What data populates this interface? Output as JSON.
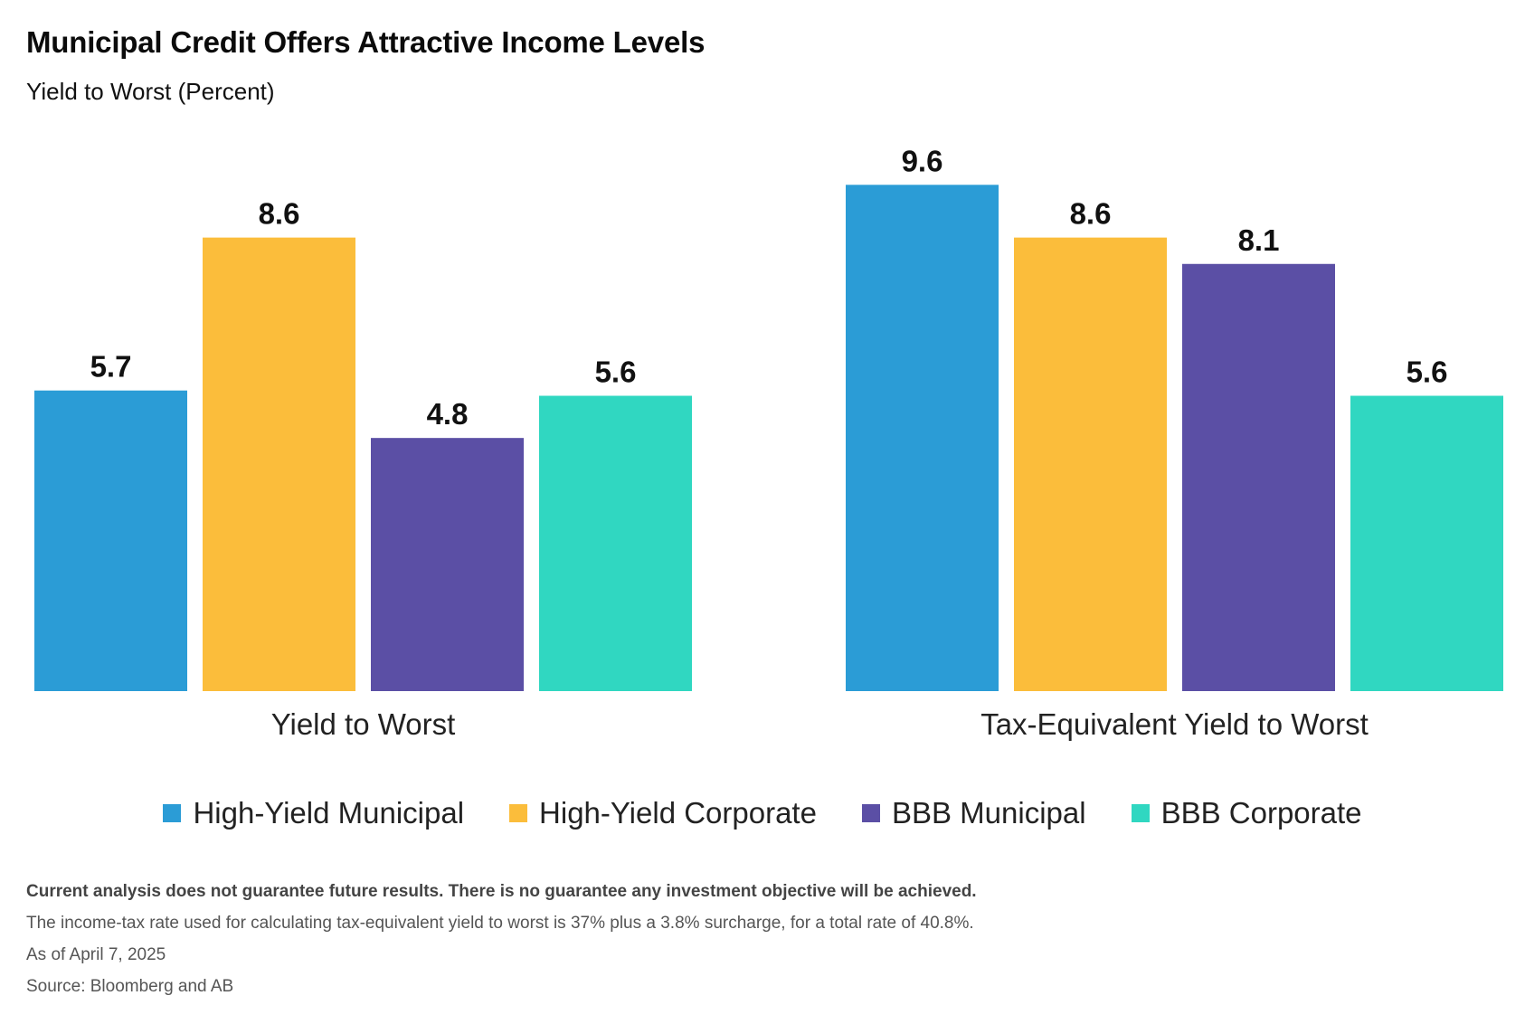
{
  "header": {
    "title": "Municipal Credit Offers Attractive Income Levels",
    "subtitle": "Yield to Worst (Percent)"
  },
  "chart_data": {
    "type": "bar",
    "title": "Municipal Credit Offers Attractive Income Levels",
    "ylabel": "Yield to Worst (Percent)",
    "ylim": [
      0,
      10
    ],
    "categories": [
      "Yield to Worst",
      "Tax-Equivalent Yield to Worst"
    ],
    "series": [
      {
        "name": "High-Yield Municipal",
        "color": "#2b9cd6",
        "values": [
          5.7,
          9.6
        ]
      },
      {
        "name": "High-Yield Corporate",
        "color": "#fbbd3b",
        "values": [
          8.6,
          8.6
        ]
      },
      {
        "name": "BBB Municipal",
        "color": "#5b4fa5",
        "values": [
          4.8,
          8.1
        ]
      },
      {
        "name": "BBB Corporate",
        "color": "#30d7c1",
        "values": [
          5.6,
          5.6
        ]
      }
    ],
    "data_labels": [
      [
        "5.7",
        "8.6",
        "4.8",
        "5.6"
      ],
      [
        "9.6",
        "8.6",
        "8.1",
        "5.6"
      ]
    ],
    "legend": "bottom-center",
    "grid": false
  },
  "notes": {
    "disclaimer": "Current analysis does not guarantee future results. There is no guarantee any investment objective will be achieved.",
    "tax_note": "The income-tax rate used for calculating tax-equivalent yield to worst is 37% plus a 3.8% surcharge, for a total rate of 40.8%.",
    "as_of": "As of April 7, 2025",
    "source": "Source: Bloomberg and AB"
  }
}
